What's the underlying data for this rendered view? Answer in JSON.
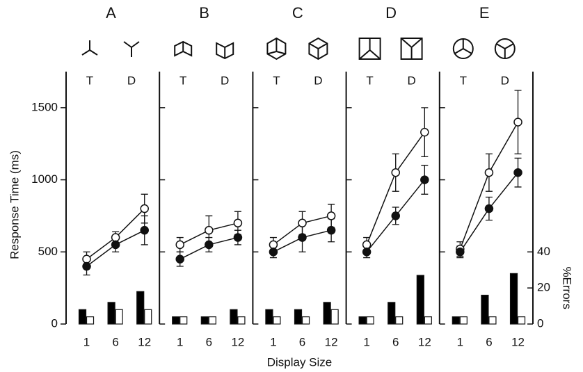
{
  "chart_data": [
    {
      "type": "line",
      "title": "A",
      "annotations": [
        "T",
        "D"
      ],
      "y_label": "Response Time (ms)",
      "categories": [
        "1",
        "6",
        "12"
      ],
      "ylim": [
        0,
        1750
      ],
      "yticks": [
        0,
        500,
        1000,
        1500
      ],
      "y2lim": [
        0,
        140
      ],
      "series": [
        {
          "marker": "open",
          "color": "#111111",
          "values": [
            450,
            600,
            800
          ],
          "errors": [
            50,
            40,
            100
          ]
        },
        {
          "marker": "filled",
          "color": "#111111",
          "values": [
            400,
            550,
            650
          ],
          "errors": [
            60,
            50,
            100
          ]
        },
        {
          "type": "bar",
          "axis": "y2",
          "color": "#000000",
          "values": [
            8,
            12,
            18
          ]
        },
        {
          "type": "bar",
          "axis": "y2",
          "color": "#ffffff",
          "values": [
            4,
            8,
            8
          ]
        }
      ]
    },
    {
      "type": "line",
      "title": "B",
      "annotations": [
        "T",
        "D"
      ],
      "categories": [
        "1",
        "6",
        "12"
      ],
      "ylim": [
        0,
        1750
      ],
      "y2lim": [
        0,
        140
      ],
      "series": [
        {
          "marker": "open",
          "color": "#111111",
          "values": [
            550,
            650,
            700
          ],
          "errors": [
            50,
            100,
            80
          ]
        },
        {
          "marker": "filled",
          "color": "#111111",
          "values": [
            450,
            550,
            600
          ],
          "errors": [
            50,
            50,
            50
          ]
        },
        {
          "type": "bar",
          "axis": "y2",
          "color": "#000000",
          "values": [
            4,
            4,
            8
          ]
        },
        {
          "type": "bar",
          "axis": "y2",
          "color": "#ffffff",
          "values": [
            4,
            4,
            4
          ]
        }
      ]
    },
    {
      "type": "line",
      "title": "C",
      "annotations": [
        "T",
        "D"
      ],
      "x_label": "Display Size",
      "categories": [
        "1",
        "6",
        "12"
      ],
      "ylim": [
        0,
        1750
      ],
      "y2lim": [
        0,
        140
      ],
      "series": [
        {
          "marker": "open",
          "color": "#111111",
          "values": [
            550,
            700,
            750
          ],
          "errors": [
            50,
            80,
            80
          ]
        },
        {
          "marker": "filled",
          "color": "#111111",
          "values": [
            500,
            600,
            650
          ],
          "errors": [
            40,
            100,
            80
          ]
        },
        {
          "type": "bar",
          "axis": "y2",
          "color": "#000000",
          "values": [
            8,
            8,
            12
          ]
        },
        {
          "type": "bar",
          "axis": "y2",
          "color": "#ffffff",
          "values": [
            4,
            4,
            8
          ]
        }
      ]
    },
    {
      "type": "line",
      "title": "D",
      "annotations": [
        "T",
        "D"
      ],
      "categories": [
        "1",
        "6",
        "12"
      ],
      "ylim": [
        0,
        1750
      ],
      "y2lim": [
        0,
        140
      ],
      "series": [
        {
          "marker": "open",
          "color": "#111111",
          "values": [
            550,
            1050,
            1330
          ],
          "errors": [
            50,
            130,
            170
          ]
        },
        {
          "marker": "filled",
          "color": "#111111",
          "values": [
            500,
            750,
            1000
          ],
          "errors": [
            40,
            60,
            100
          ]
        },
        {
          "type": "bar",
          "axis": "y2",
          "color": "#000000",
          "values": [
            4,
            12,
            27
          ]
        },
        {
          "type": "bar",
          "axis": "y2",
          "color": "#ffffff",
          "values": [
            4,
            4,
            4
          ]
        }
      ]
    },
    {
      "type": "line",
      "title": "E",
      "annotations": [
        "T",
        "D"
      ],
      "y2_label": "%Errors",
      "categories": [
        "1",
        "6",
        "12"
      ],
      "ylim": [
        0,
        1750
      ],
      "y2lim": [
        0,
        140
      ],
      "y2ticks": [
        0,
        20,
        40
      ],
      "series": [
        {
          "marker": "open",
          "color": "#111111",
          "values": [
            520,
            1050,
            1400
          ],
          "errors": [
            50,
            130,
            220
          ]
        },
        {
          "marker": "filled",
          "color": "#111111",
          "values": [
            500,
            800,
            1050
          ],
          "errors": [
            40,
            80,
            100
          ]
        },
        {
          "type": "bar",
          "axis": "y2",
          "color": "#000000",
          "values": [
            4,
            16,
            28
          ]
        },
        {
          "type": "bar",
          "axis": "y2",
          "color": "#ffffff",
          "values": [
            4,
            4,
            4
          ]
        }
      ]
    }
  ]
}
